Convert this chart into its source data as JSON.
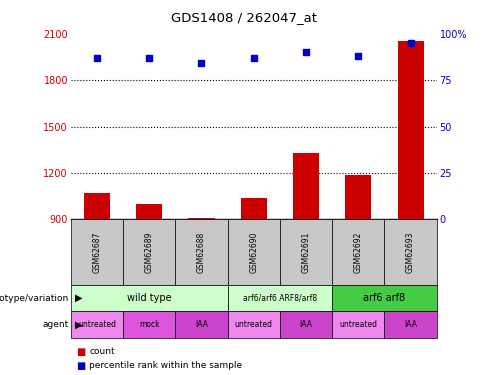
{
  "title": "GDS1408 / 262047_at",
  "samples": [
    "GSM62687",
    "GSM62689",
    "GSM62688",
    "GSM62690",
    "GSM62691",
    "GSM62692",
    "GSM62693"
  ],
  "bar_values": [
    1070,
    1000,
    910,
    1040,
    1330,
    1185,
    2050
  ],
  "bar_baseline": 900,
  "scatter_values": [
    87,
    87,
    84,
    87,
    90,
    88,
    95
  ],
  "ylim_left": [
    900,
    2100
  ],
  "ylim_right": [
    0,
    100
  ],
  "yticks_left": [
    900,
    1200,
    1500,
    1800,
    2100
  ],
  "yticks_right": [
    0,
    25,
    50,
    75,
    100
  ],
  "bar_color": "#cc0000",
  "scatter_color": "#0000cc",
  "genotype_groups": [
    {
      "label": "wild type",
      "start": 0,
      "end": 3,
      "color": "#ccffcc"
    },
    {
      "label": "arf6/arf6 ARF8/arf8",
      "start": 3,
      "end": 5,
      "color": "#ccffcc"
    },
    {
      "label": "arf6 arf8",
      "start": 5,
      "end": 7,
      "color": "#44cc44"
    }
  ],
  "agent_groups": [
    {
      "label": "untreated",
      "start": 0,
      "end": 1,
      "color": "#ee88ee"
    },
    {
      "label": "mock",
      "start": 1,
      "end": 2,
      "color": "#dd55dd"
    },
    {
      "label": "IAA",
      "start": 2,
      "end": 3,
      "color": "#cc44cc"
    },
    {
      "label": "untreated",
      "start": 3,
      "end": 4,
      "color": "#ee88ee"
    },
    {
      "label": "IAA",
      "start": 4,
      "end": 5,
      "color": "#cc44cc"
    },
    {
      "label": "untreated",
      "start": 5,
      "end": 6,
      "color": "#ee88ee"
    },
    {
      "label": "IAA",
      "start": 6,
      "end": 7,
      "color": "#cc44cc"
    }
  ],
  "row_label_genotype": "genotype/variation",
  "row_label_agent": "agent",
  "legend_count": "count",
  "legend_percentile": "percentile rank within the sample",
  "left_axis_color": "#cc0000",
  "right_axis_color": "#0000cc",
  "grid_dotted_vals": [
    1200,
    1500,
    1800
  ],
  "sample_box_color": "#c8c8c8"
}
